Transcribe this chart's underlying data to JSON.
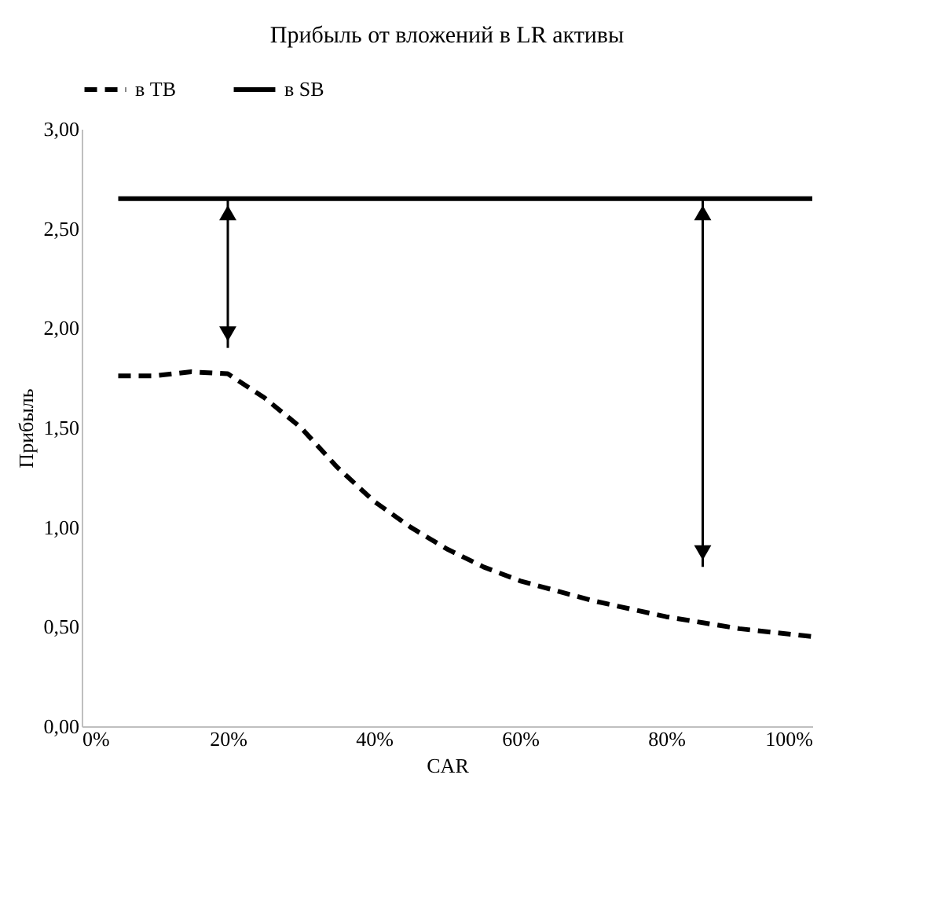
{
  "chart_data": {
    "type": "line",
    "title": "Прибыль от вложений в LR активы",
    "xlabel": "CAR",
    "ylabel": "Прибыль",
    "x": [
      5,
      10,
      15,
      20,
      25,
      30,
      35,
      40,
      45,
      50,
      55,
      60,
      65,
      70,
      75,
      80,
      85,
      90,
      95,
      100
    ],
    "series": [
      {
        "name": "в TB",
        "color": "#000000",
        "line_style": "dashed",
        "values": [
          1.76,
          1.76,
          1.78,
          1.77,
          1.65,
          1.5,
          1.3,
          1.13,
          1.0,
          0.89,
          0.8,
          0.73,
          0.68,
          0.63,
          0.59,
          0.55,
          0.52,
          0.49,
          0.47,
          0.45
        ]
      },
      {
        "name": "в SB",
        "color": "#000000",
        "line_style": "solid",
        "values": [
          2.65,
          2.65,
          2.65,
          2.65,
          2.65,
          2.65,
          2.65,
          2.65,
          2.65,
          2.65,
          2.65,
          2.65,
          2.65,
          2.65,
          2.65,
          2.65,
          2.65,
          2.65,
          2.65,
          2.65
        ]
      }
    ],
    "xlim": [
      0,
      100
    ],
    "xticks": [
      {
        "value": 0,
        "label": "0%"
      },
      {
        "value": 20,
        "label": "20%"
      },
      {
        "value": 40,
        "label": "40%"
      },
      {
        "value": 60,
        "label": "60%"
      },
      {
        "value": 80,
        "label": "80%"
      },
      {
        "value": 100,
        "label": "100%"
      }
    ],
    "ylim": [
      0,
      3
    ],
    "yticks": [
      {
        "value": 0,
        "label": "0,00"
      },
      {
        "value": 0.5,
        "label": "0,50"
      },
      {
        "value": 1,
        "label": "1,00"
      },
      {
        "value": 1.5,
        "label": "1,50"
      },
      {
        "value": 2,
        "label": "2,00"
      },
      {
        "value": 2.5,
        "label": "2,50"
      },
      {
        "value": 3,
        "label": "3,00"
      }
    ],
    "grid": false,
    "legend": "top",
    "marker": "none"
  }
}
